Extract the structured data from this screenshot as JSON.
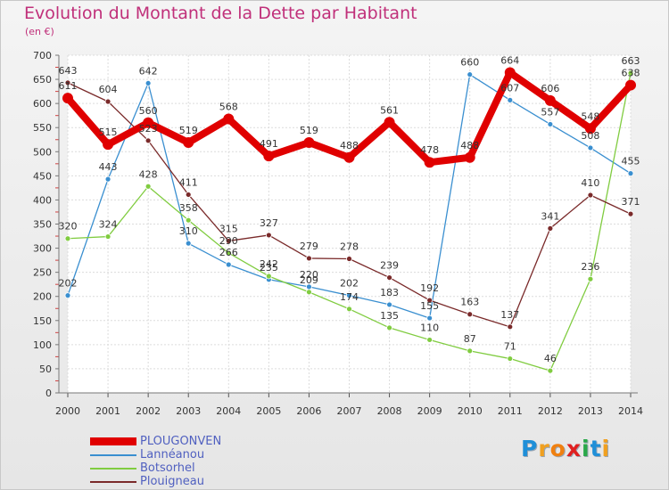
{
  "title": "Evolution du Montant de la Dette par Habitant",
  "unit": "(en €)",
  "logo": {
    "letters": [
      "P",
      "r",
      "o",
      "x",
      "i",
      "t",
      "i"
    ],
    "colors": [
      "#1f8fd8",
      "#f0a020",
      "#f08010",
      "#e02020",
      "#2aa84a",
      "#1f8fd8",
      "#f0a020"
    ]
  },
  "chart_data": {
    "type": "line",
    "title": "Evolution du Montant de la Dette par Habitant",
    "ylabel": "(en €)",
    "xlabel": "",
    "ylim": [
      0,
      700
    ],
    "y_ticks": [
      "0",
      "50",
      "100",
      "150",
      "200",
      "250",
      "300",
      "350",
      "400",
      "450",
      "500",
      "550",
      "600",
      "650",
      "700"
    ],
    "x": [
      "2000",
      "2001",
      "2002",
      "2003",
      "2004",
      "2005",
      "2006",
      "2007",
      "2008",
      "2009",
      "2010",
      "2011",
      "2012",
      "2013",
      "2014"
    ],
    "grid": true,
    "legend": "bottom-left",
    "series": [
      {
        "name": "PLOUGONVEN",
        "color": "#e00000",
        "values": [
          611,
          515,
          560,
          519,
          568,
          491,
          519,
          488,
          561,
          478,
          488,
          664,
          606,
          548,
          638
        ]
      },
      {
        "name": "Lannéanou",
        "color": "#3a8fd0",
        "values": [
          202,
          443,
          642,
          310,
          266,
          235,
          220,
          202,
          183,
          155,
          660,
          607,
          557,
          508,
          455
        ]
      },
      {
        "name": "Botsorhel",
        "color": "#80cc40",
        "values": [
          320,
          324,
          428,
          358,
          290,
          242,
          209,
          174,
          135,
          110,
          87,
          71,
          46,
          236,
          663
        ]
      },
      {
        "name": "Plouigneau",
        "color": "#7a2a2a",
        "values": [
          643,
          604,
          523,
          411,
          315,
          327,
          279,
          278,
          239,
          192,
          163,
          137,
          341,
          410,
          371
        ]
      }
    ]
  }
}
